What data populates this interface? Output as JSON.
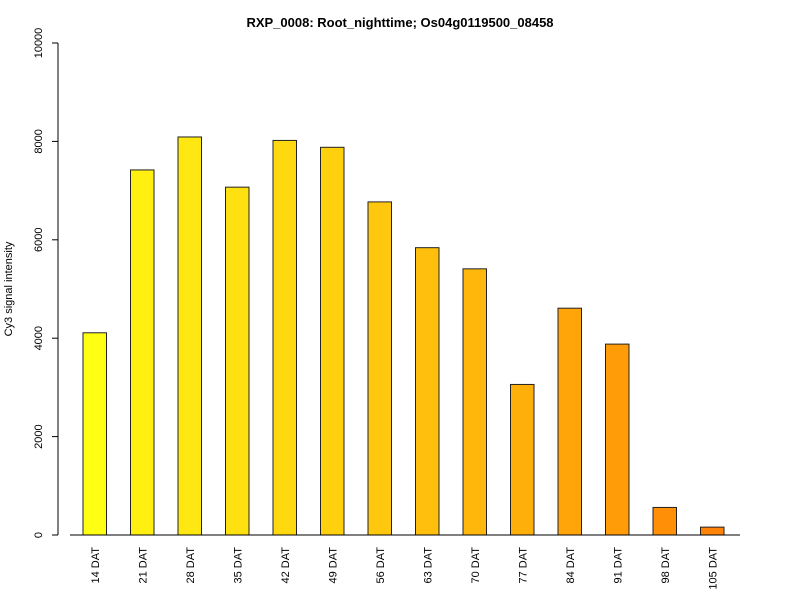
{
  "chart_data": {
    "type": "bar",
    "title": "RXP_0008: Root_nighttime; Os04g0119500_08458",
    "xlabel": "",
    "ylabel": "Cy3 signal intensity",
    "ylim": [
      0,
      10000
    ],
    "yticks": [
      0,
      2000,
      4000,
      6000,
      8000,
      10000
    ],
    "categories": [
      "14 DAT",
      "21 DAT",
      "28 DAT",
      "35 DAT",
      "42 DAT",
      "49 DAT",
      "56 DAT",
      "63 DAT",
      "70 DAT",
      "77 DAT",
      "84 DAT",
      "91 DAT",
      "98 DAT",
      "105 DAT"
    ],
    "values": [
      4110,
      7420,
      8090,
      7070,
      8020,
      7880,
      6770,
      5840,
      5410,
      3060,
      4610,
      3880,
      560,
      160
    ],
    "colors": [
      "#FFFF14",
      "#FFF012",
      "#FFE811",
      "#FFE010",
      "#FFD90F",
      "#FFD00E",
      "#FFC70D",
      "#FFBF0C",
      "#FFB70B",
      "#FFAF0A",
      "#FFA509",
      "#FF9C08",
      "#FF8F07",
      "#FF8306"
    ],
    "grid": false,
    "legend": "none"
  }
}
